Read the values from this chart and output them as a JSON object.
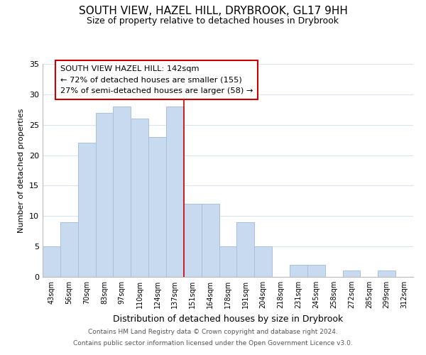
{
  "title": "SOUTH VIEW, HAZEL HILL, DRYBROOK, GL17 9HH",
  "subtitle": "Size of property relative to detached houses in Drybrook",
  "xlabel": "Distribution of detached houses by size in Drybrook",
  "ylabel": "Number of detached properties",
  "bin_labels": [
    "43sqm",
    "56sqm",
    "70sqm",
    "83sqm",
    "97sqm",
    "110sqm",
    "124sqm",
    "137sqm",
    "151sqm",
    "164sqm",
    "178sqm",
    "191sqm",
    "204sqm",
    "218sqm",
    "231sqm",
    "245sqm",
    "258sqm",
    "272sqm",
    "285sqm",
    "299sqm",
    "312sqm"
  ],
  "bar_values": [
    5,
    9,
    22,
    27,
    28,
    26,
    23,
    28,
    12,
    12,
    5,
    9,
    5,
    0,
    2,
    2,
    0,
    1,
    0,
    1,
    0
  ],
  "bar_color": "#c8daf0",
  "bar_edge_color": "#a8c0e0",
  "highlight_index": 7,
  "highlight_line_color": "#cc0000",
  "ylim": [
    0,
    35
  ],
  "yticks": [
    0,
    5,
    10,
    15,
    20,
    25,
    30,
    35
  ],
  "annotation_title": "SOUTH VIEW HAZEL HILL: 142sqm",
  "annotation_line1": "← 72% of detached houses are smaller (155)",
  "annotation_line2": "27% of semi-detached houses are larger (58) →",
  "annotation_box_color": "#ffffff",
  "annotation_box_edge": "#cc0000",
  "footer_line1": "Contains HM Land Registry data © Crown copyright and database right 2024.",
  "footer_line2": "Contains public sector information licensed under the Open Government Licence v3.0.",
  "background_color": "#ffffff",
  "grid_color": "#d8e4f0"
}
